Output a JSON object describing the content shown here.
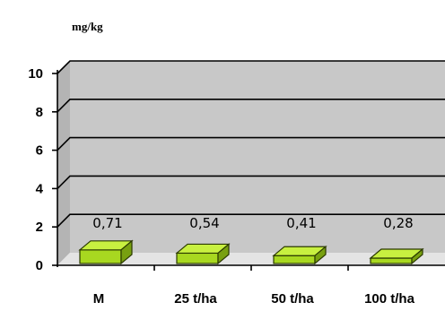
{
  "chart_data": {
    "type": "bar",
    "title": "",
    "unit_label": "mg/kg",
    "categories": [
      "M",
      "25 t/ha",
      "50 t/ha",
      "100 t/ha"
    ],
    "series": [
      {
        "values": [
          0.71,
          0.54,
          0.41,
          0.28
        ]
      }
    ],
    "data_labels": [
      "0,71",
      "0,54",
      "0,41",
      "0,28"
    ],
    "ylim": [
      0,
      10
    ],
    "yticks": [
      0,
      2,
      4,
      6,
      8,
      10
    ],
    "grid": true,
    "three_d": true,
    "colors": {
      "bar_front": "#a8d820",
      "bar_top": "#c8f040",
      "bar_side": "#78a010",
      "bar_edge": "#2b3a00",
      "plot_back": "#c8c8c8",
      "floor": "#e4e4e4",
      "gridline": "#000000"
    }
  }
}
